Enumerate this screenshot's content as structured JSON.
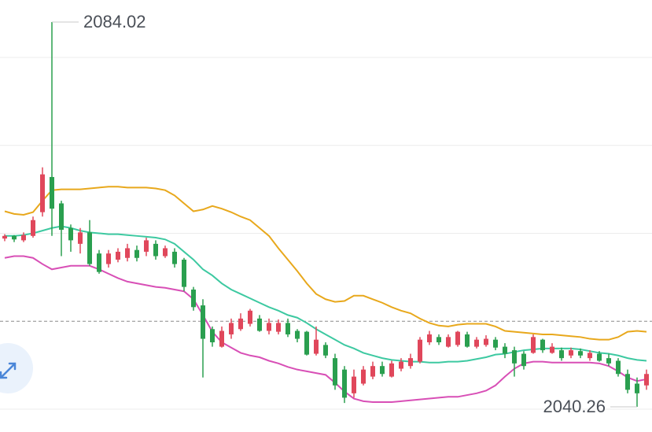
{
  "chart_data": {
    "type": "candlestick",
    "ylim": [
      2037.4,
      2086.53
    ],
    "grid_values": [
      2040,
      2060,
      2070,
      2080
    ],
    "price_line": 2050.0,
    "up_color": "#e0475b",
    "down_color": "#2a9f4f",
    "open": [
      2059.4,
      2059.7,
      2059.2,
      2059.7,
      2062.4,
      2066.4,
      2063.4,
      2060.6,
      2058.8,
      2060.1,
      2057.7,
      2056.5,
      2057.0,
      2057.2,
      2058.1,
      2057.9,
      2058.8,
      2057.4,
      2057.9,
      2057.0,
      2053.6,
      2051.8,
      2049.1,
      2047.1,
      2048.5,
      2049.1,
      2049.7,
      2050.3,
      2048.9,
      2048.8,
      2049.8,
      2048.9,
      2048.8,
      2046.3,
      2047.3,
      2045.8,
      2044.5,
      2041.8,
      2042.9,
      2043.7,
      2044.9,
      2043.7,
      2044.6,
      2044.9,
      2045.4,
      2047.6,
      2048.2,
      2047.1,
      2047.3,
      2048.5,
      2047.1,
      2047.3,
      2047.9,
      2047.1,
      2046.7,
      2046.3,
      2046.4,
      2047.9,
      2046.4,
      2046.7,
      2046.1,
      2046.6,
      2045.8,
      2046.3,
      2045.8,
      2045.5,
      2044.0,
      2042.9,
      2042.7
    ],
    "close": [
      2059.7,
      2059.3,
      2059.8,
      2061.5,
      2066.7,
      2062.8,
      2060.4,
      2059.2,
      2060.1,
      2056.5,
      2055.6,
      2057.7,
      2057.9,
      2058.3,
      2057.2,
      2059.2,
      2057.4,
      2058.3,
      2056.5,
      2053.9,
      2051.6,
      2048.0,
      2047.6,
      2048.9,
      2049.8,
      2050.3,
      2051.2,
      2048.9,
      2049.8,
      2049.8,
      2048.5,
      2048.0,
      2046.2,
      2047.9,
      2046.1,
      2042.7,
      2041.3,
      2043.7,
      2044.5,
      2044.9,
      2044.0,
      2045.2,
      2045.4,
      2045.8,
      2047.9,
      2048.5,
      2047.6,
      2048.2,
      2048.8,
      2047.1,
      2047.9,
      2048.0,
      2047.0,
      2046.3,
      2045.2,
      2044.9,
      2048.2,
      2046.7,
      2047.1,
      2045.8,
      2046.7,
      2046.1,
      2046.4,
      2045.5,
      2045.2,
      2044.0,
      2042.2,
      2041.8,
      2044.0
    ],
    "high": [
      2059.9,
      2059.8,
      2060.1,
      2061.9,
      2067.5,
      2084.02,
      2063.7,
      2061.0,
      2060.6,
      2061.5,
      2058.1,
      2058.1,
      2058.3,
      2058.8,
      2058.6,
      2059.5,
      2059.2,
      2058.6,
      2058.3,
      2057.2,
      2053.9,
      2052.5,
      2049.4,
      2049.4,
      2050.3,
      2050.9,
      2051.4,
      2050.7,
      2050.3,
      2050.2,
      2050.3,
      2049.1,
      2048.9,
      2049.4,
      2047.6,
      2046.3,
      2044.9,
      2044.5,
      2044.9,
      2045.4,
      2045.4,
      2045.5,
      2045.8,
      2046.3,
      2048.2,
      2048.9,
      2048.5,
      2048.5,
      2048.9,
      2048.8,
      2048.2,
      2048.4,
      2048.2,
      2047.5,
      2047.1,
      2046.6,
      2048.5,
      2048.0,
      2047.5,
      2047.0,
      2047.0,
      2046.9,
      2046.7,
      2046.6,
      2046.3,
      2045.8,
      2044.5,
      2043.6,
      2044.5
    ],
    "low": [
      2059.1,
      2059.0,
      2059.0,
      2059.5,
      2061.9,
      2059.7,
      2057.4,
      2057.9,
      2057.7,
      2056.3,
      2055.4,
      2056.1,
      2056.7,
      2056.8,
      2056.8,
      2057.4,
      2057.0,
      2057.2,
      2056.1,
      2053.4,
      2051.2,
      2043.6,
      2047.1,
      2047.0,
      2048.0,
      2048.9,
      2049.4,
      2048.8,
      2048.5,
      2048.5,
      2048.2,
      2047.6,
      2046.1,
      2046.1,
      2045.8,
      2042.2,
      2040.7,
      2041.3,
      2042.7,
      2043.4,
      2043.7,
      2043.6,
      2044.3,
      2044.6,
      2045.2,
      2047.3,
      2047.3,
      2047.0,
      2047.1,
      2047.0,
      2046.9,
      2047.1,
      2046.7,
      2045.8,
      2043.7,
      2044.5,
      2046.3,
      2046.4,
      2046.3,
      2045.5,
      2045.8,
      2045.8,
      2045.5,
      2045.4,
      2044.9,
      2043.7,
      2041.8,
      2040.26,
      2042.2
    ],
    "bands": [
      {
        "color": "#e8a81c",
        "values": [
          2062.5,
          2062.2,
          2062.1,
          2062.4,
          2063.7,
          2064.9,
          2065.0,
          2065.0,
          2065.0,
          2065.1,
          2065.2,
          2065.3,
          2065.3,
          2065.2,
          2065.2,
          2065.2,
          2065.1,
          2064.9,
          2064.3,
          2063.4,
          2062.5,
          2062.7,
          2063.1,
          2062.8,
          2062.4,
          2061.9,
          2061.5,
          2060.6,
          2059.7,
          2058.3,
          2057.0,
          2055.7,
          2054.3,
          2053.1,
          2052.5,
          2052.2,
          2052.3,
          2052.9,
          2052.9,
          2052.5,
          2052.1,
          2051.6,
          2051.2,
          2050.9,
          2050.3,
          2049.8,
          2049.5,
          2049.4,
          2049.6,
          2049.7,
          2049.7,
          2049.7,
          2049.4,
          2048.9,
          2048.8,
          2048.7,
          2048.6,
          2048.5,
          2048.5,
          2048.4,
          2048.3,
          2048.2,
          2048.0,
          2047.9,
          2047.9,
          2048.2,
          2048.8,
          2048.9,
          2048.8
        ]
      },
      {
        "color": "#3dc9a1",
        "values": [
          2059.7,
          2059.7,
          2059.8,
          2060.0,
          2060.3,
          2060.6,
          2060.8,
          2060.6,
          2060.3,
          2060.1,
          2060.0,
          2059.9,
          2059.9,
          2059.8,
          2059.7,
          2059.6,
          2059.5,
          2059.3,
          2058.8,
          2057.9,
          2057.0,
          2055.9,
          2055.2,
          2054.3,
          2053.6,
          2053.1,
          2052.6,
          2052.1,
          2051.6,
          2051.2,
          2050.7,
          2050.4,
          2049.8,
          2049.1,
          2048.5,
          2047.9,
          2047.3,
          2046.9,
          2046.4,
          2046.1,
          2045.8,
          2045.6,
          2045.5,
          2045.4,
          2045.4,
          2045.3,
          2045.3,
          2045.4,
          2045.4,
          2045.5,
          2045.7,
          2045.9,
          2046.2,
          2046.3,
          2046.5,
          2046.7,
          2046.8,
          2046.9,
          2046.9,
          2046.9,
          2046.9,
          2046.8,
          2046.6,
          2046.4,
          2046.3,
          2046.1,
          2045.8,
          2045.6,
          2045.5
        ]
      },
      {
        "color": "#d84fb6",
        "values": [
          2057.2,
          2057.4,
          2057.4,
          2057.2,
          2056.5,
          2055.9,
          2056.1,
          2056.3,
          2056.3,
          2056.3,
          2055.9,
          2055.4,
          2054.9,
          2054.5,
          2054.3,
          2054.1,
          2053.9,
          2053.8,
          2053.6,
          2053.4,
          2052.5,
          2050.7,
          2048.8,
          2047.6,
          2047.0,
          2046.4,
          2046.1,
          2045.9,
          2045.5,
          2045.2,
          2044.8,
          2044.5,
          2044.3,
          2044.1,
          2043.9,
          2043.0,
          2042.0,
          2041.2,
          2040.9,
          2040.8,
          2040.8,
          2040.8,
          2040.9,
          2041.0,
          2041.1,
          2041.2,
          2041.3,
          2041.4,
          2041.4,
          2041.6,
          2041.8,
          2042.1,
          2042.7,
          2043.7,
          2044.6,
          2045.2,
          2045.4,
          2045.4,
          2045.3,
          2045.3,
          2045.3,
          2045.3,
          2045.3,
          2045.2,
          2044.9,
          2044.3,
          2043.6,
          2043.2,
          2043.4
        ]
      }
    ]
  }
}
